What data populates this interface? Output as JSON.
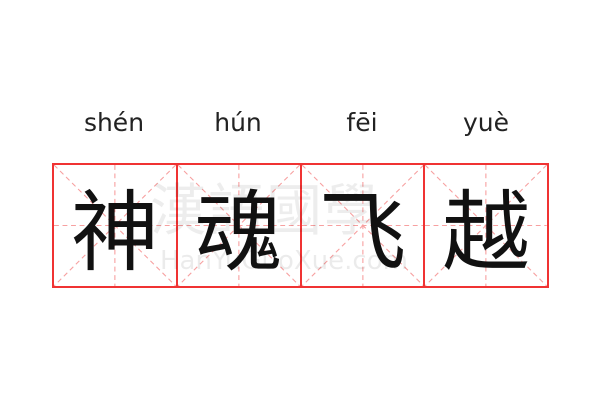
{
  "pinyin": [
    "shén",
    "hún",
    "fēi",
    "yuè"
  ],
  "characters": [
    "神",
    "魂",
    "飞",
    "越"
  ],
  "watermark": {
    "chinese": "漢語國學",
    "latin": "HanYuGuoXue.com"
  },
  "colors": {
    "border": "#f03333",
    "guide": "#f7a0a0",
    "text": "#111111"
  }
}
